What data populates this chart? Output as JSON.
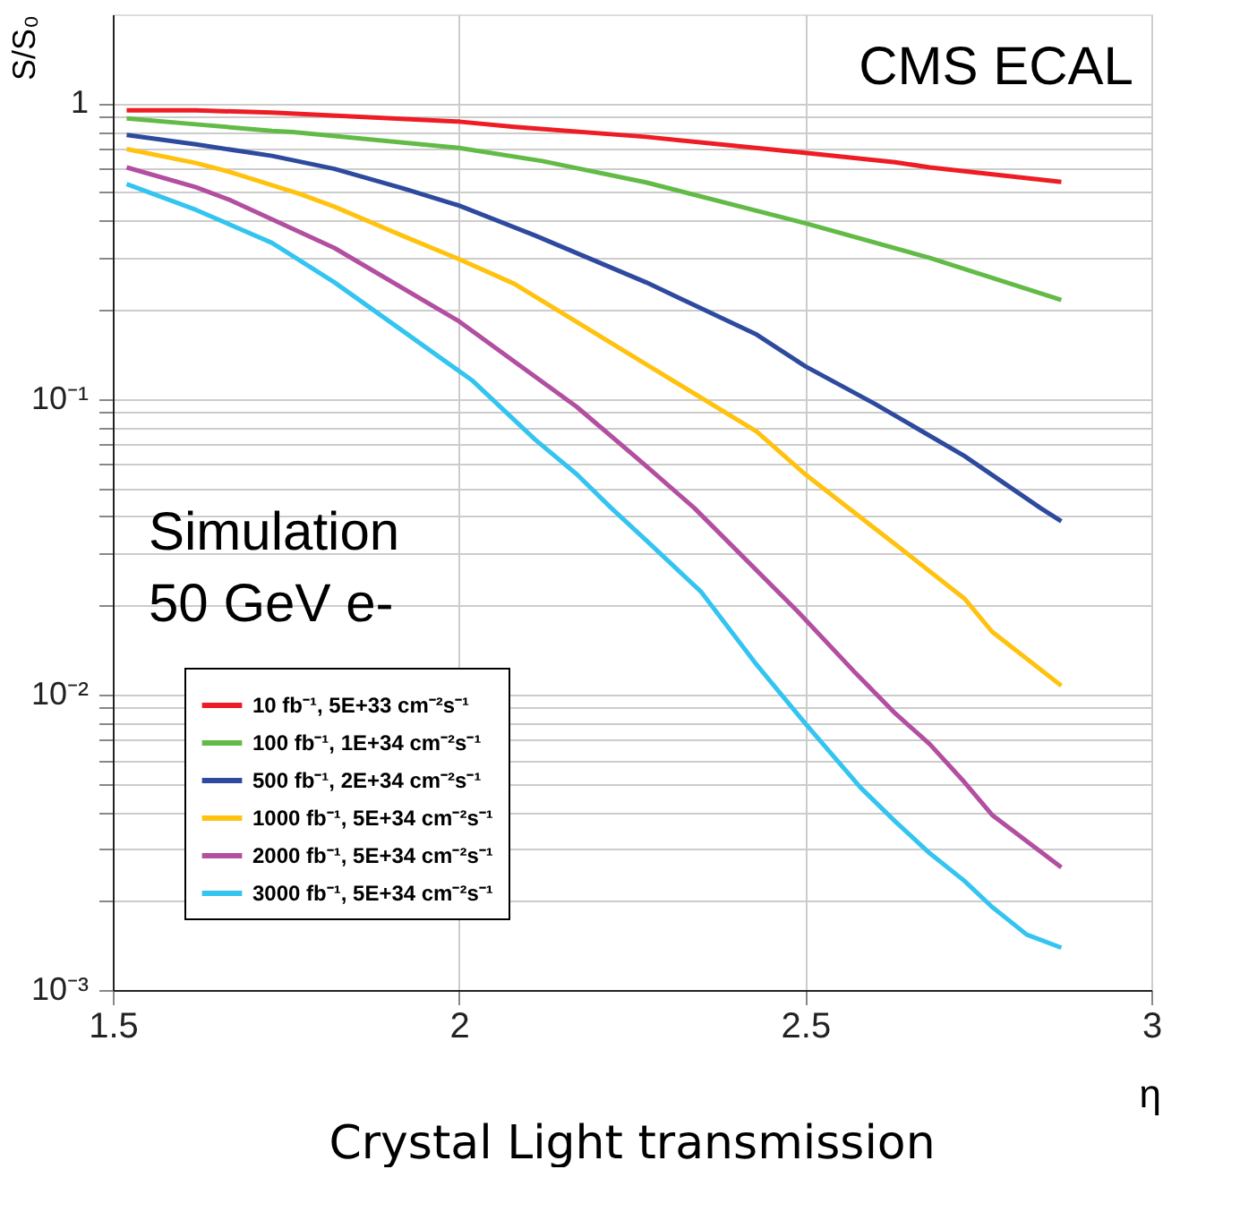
{
  "chart_data": {
    "type": "line",
    "title": "Crystal Light transmission",
    "xlabel": "η",
    "ylabel": "S/S₀",
    "annotations": [
      "CMS ECAL",
      "Simulation",
      "50 GeV e-"
    ],
    "log": "y",
    "grid": true,
    "legend": "bottom left",
    "marker": "none",
    "line_style": "solid",
    "xlim": [
      1.5,
      3
    ],
    "xticks": [
      1.5,
      2,
      2.5,
      3
    ],
    "ylim": [
      0.001,
      2
    ],
    "yticks": [
      {
        "value": 0.001,
        "label": "10⁻³"
      },
      {
        "value": 0.002,
        "label": null
      },
      {
        "value": 0.003,
        "label": null
      },
      {
        "value": 0.004,
        "label": null
      },
      {
        "value": 0.005,
        "label": null
      },
      {
        "value": 0.006,
        "label": null
      },
      {
        "value": 0.007,
        "label": null
      },
      {
        "value": 0.008,
        "label": null
      },
      {
        "value": 0.009,
        "label": null
      },
      {
        "value": 0.01,
        "label": "10⁻²"
      },
      {
        "value": 0.02,
        "label": null
      },
      {
        "value": 0.03,
        "label": null
      },
      {
        "value": 0.04,
        "label": null
      },
      {
        "value": 0.05,
        "label": null
      },
      {
        "value": 0.06,
        "label": null
      },
      {
        "value": 0.07,
        "label": null
      },
      {
        "value": 0.08,
        "label": null
      },
      {
        "value": 0.09,
        "label": null
      },
      {
        "value": 0.1,
        "label": "10⁻¹"
      },
      {
        "value": 0.2,
        "label": null
      },
      {
        "value": 0.3,
        "label": null
      },
      {
        "value": 0.4,
        "label": null
      },
      {
        "value": 0.5,
        "label": null
      },
      {
        "value": 0.6,
        "label": null
      },
      {
        "value": 0.7,
        "label": null
      },
      {
        "value": 0.8,
        "label": null
      },
      {
        "value": 0.9,
        "label": null
      },
      {
        "value": 1,
        "label": "1"
      }
    ],
    "series": [
      {
        "name": "10 fb⁻¹, 5E+33 cm⁻²s⁻¹",
        "color": "#ee1c24",
        "x": [
          1.52,
          1.62,
          1.73,
          2.0,
          2.08,
          2.27,
          2.5,
          2.63,
          2.68,
          2.87
        ],
        "values": [
          0.946,
          0.946,
          0.93,
          0.867,
          0.832,
          0.77,
          0.68,
          0.632,
          0.607,
          0.542
        ]
      },
      {
        "name": "100 fb⁻¹, 1E+34 cm⁻²s⁻¹",
        "color": "#62bb46",
        "x": [
          1.52,
          1.62,
          1.73,
          1.76,
          2.0,
          2.12,
          2.27,
          2.5,
          2.68,
          2.87
        ],
        "values": [
          0.889,
          0.849,
          0.807,
          0.8,
          0.706,
          0.638,
          0.54,
          0.393,
          0.3,
          0.216
        ]
      },
      {
        "name": "500 fb⁻¹, 2E+34 cm⁻²s⁻¹",
        "color": "#2e4a9e",
        "x": [
          1.52,
          1.62,
          1.73,
          1.82,
          1.92,
          2.0,
          2.11,
          2.27,
          2.43,
          2.5,
          2.6,
          2.73,
          2.84,
          2.87
        ],
        "values": [
          0.782,
          0.726,
          0.664,
          0.6,
          0.515,
          0.451,
          0.357,
          0.248,
          0.165,
          0.129,
          0.0964,
          0.0641,
          0.0427,
          0.0385
        ]
      },
      {
        "name": "1000 fb⁻¹, 5E+34 cm⁻²s⁻¹",
        "color": "#ffc20e",
        "x": [
          1.52,
          1.62,
          1.67,
          1.77,
          1.82,
          1.92,
          2.0,
          2.08,
          2.27,
          2.43,
          2.5,
          2.56,
          2.64,
          2.73,
          2.77,
          2.87
        ],
        "values": [
          0.7,
          0.628,
          0.585,
          0.494,
          0.447,
          0.355,
          0.297,
          0.245,
          0.131,
          0.0775,
          0.0556,
          0.0432,
          0.0309,
          0.0211,
          0.0163,
          0.0107
        ]
      },
      {
        "name": "2000 fb⁻¹, 5E+34 cm⁻²s⁻¹",
        "color": "#b24fa0",
        "x": [
          1.52,
          1.62,
          1.67,
          1.82,
          2.0,
          2.17,
          2.27,
          2.34,
          2.49,
          2.57,
          2.63,
          2.68,
          2.73,
          2.77,
          2.87
        ],
        "values": [
          0.607,
          0.52,
          0.47,
          0.324,
          0.183,
          0.094,
          0.0594,
          0.0427,
          0.019,
          0.012,
          0.00863,
          0.00679,
          0.00505,
          0.00391,
          0.0026
        ]
      },
      {
        "name": "3000 fb⁻¹, 5E+34 cm⁻²s⁻¹",
        "color": "#33c4f0",
        "x": [
          1.52,
          1.62,
          1.73,
          1.82,
          1.92,
          2.02,
          2.11,
          2.17,
          2.22,
          2.27,
          2.35,
          2.43,
          2.5,
          2.58,
          2.63,
          2.68,
          2.73,
          2.77,
          2.82,
          2.87
        ],
        "values": [
          0.533,
          0.436,
          0.337,
          0.248,
          0.169,
          0.115,
          0.0728,
          0.0556,
          0.0427,
          0.0333,
          0.0222,
          0.0126,
          0.00798,
          0.00484,
          0.00372,
          0.0029,
          0.00234,
          0.00191,
          0.00154,
          0.00139
        ]
      }
    ]
  }
}
